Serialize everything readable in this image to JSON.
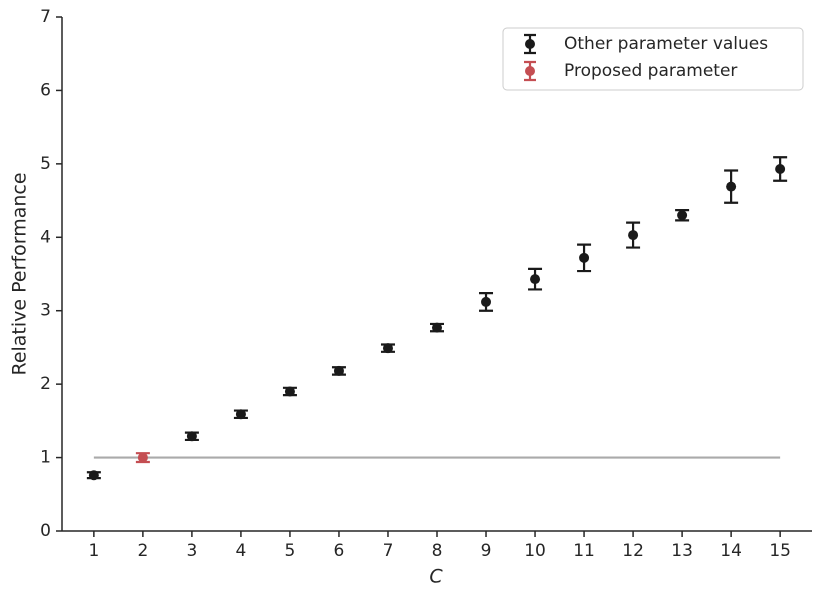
{
  "chart_data": {
    "type": "errorbar",
    "xlabel": "C",
    "ylabel": "Relative Performance",
    "xlim": [
      0.35,
      15.65
    ],
    "ylim": [
      0,
      7
    ],
    "xticks": [
      1,
      2,
      3,
      4,
      5,
      6,
      7,
      8,
      9,
      10,
      11,
      12,
      13,
      14,
      15
    ],
    "yticks": [
      0,
      1,
      2,
      3,
      4,
      5,
      6,
      7
    ],
    "legend": "upper right",
    "reference_line": {
      "y": 1,
      "xmin": 1,
      "xmax": 15,
      "color": "#aaaaaa"
    },
    "series": [
      {
        "name": "Other parameter values",
        "color": "#1a1a1a",
        "x": [
          1,
          3,
          4,
          5,
          6,
          7,
          8,
          9,
          10,
          11,
          12,
          13,
          14,
          15
        ],
        "values": [
          0.76,
          1.29,
          1.59,
          1.9,
          2.18,
          2.49,
          2.77,
          3.12,
          3.43,
          3.72,
          4.03,
          4.3,
          4.69,
          4.93
        ],
        "errors": [
          0.04,
          0.05,
          0.05,
          0.05,
          0.05,
          0.05,
          0.05,
          0.12,
          0.14,
          0.18,
          0.17,
          0.07,
          0.22,
          0.16
        ]
      },
      {
        "name": "Proposed parameter",
        "color": "#c44e52",
        "x": [
          2
        ],
        "values": [
          1.0
        ],
        "errors": [
          0.06
        ]
      }
    ]
  }
}
